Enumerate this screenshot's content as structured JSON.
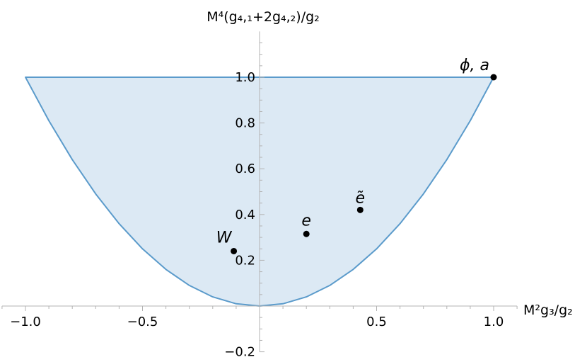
{
  "chart_data": {
    "type": "area",
    "title": "",
    "xlabel": "M²g₃/g₂",
    "ylabel": "M⁴(g₄,₁+2g₄,₂)/g₂",
    "xlim": [
      -1.1,
      1.1
    ],
    "ylim": [
      -0.2,
      1.2
    ],
    "grid": false,
    "x_ticks": [
      -1.0,
      -0.5,
      0.5,
      1.0
    ],
    "x_tick_labels": [
      "−1.0",
      "−0.5",
      "0.5",
      "1.0"
    ],
    "y_ticks": [
      -0.2,
      0.2,
      0.4,
      0.6,
      0.8,
      1.0
    ],
    "y_tick_labels": [
      "−0.2",
      "0.2",
      "0.4",
      "0.6",
      "0.8",
      "1.0"
    ],
    "region": {
      "description": "allowed region bounded by y = x^2 below and y = 1 above",
      "x": [
        -1.0,
        -0.9,
        -0.8,
        -0.7,
        -0.6,
        -0.5,
        -0.4,
        -0.3,
        -0.2,
        -0.1,
        0.0,
        0.1,
        0.2,
        0.3,
        0.4,
        0.5,
        0.6,
        0.7,
        0.8,
        0.9,
        1.0
      ],
      "lower": [
        1.0,
        0.81,
        0.64,
        0.49,
        0.36,
        0.25,
        0.16,
        0.09,
        0.04,
        0.01,
        0.0,
        0.01,
        0.04,
        0.09,
        0.16,
        0.25,
        0.36,
        0.49,
        0.64,
        0.81,
        1.0
      ],
      "upper": 1.0,
      "fill": "#dce9f4",
      "stroke": "#5b9bcb"
    },
    "points": [
      {
        "label": "W",
        "x": -0.11,
        "y": 0.24
      },
      {
        "label": "e",
        "x": 0.2,
        "y": 0.315
      },
      {
        "label": "ẽ",
        "x": 0.43,
        "y": 0.42
      },
      {
        "label": "ϕ, a",
        "x": 1.0,
        "y": 1.0
      }
    ]
  }
}
